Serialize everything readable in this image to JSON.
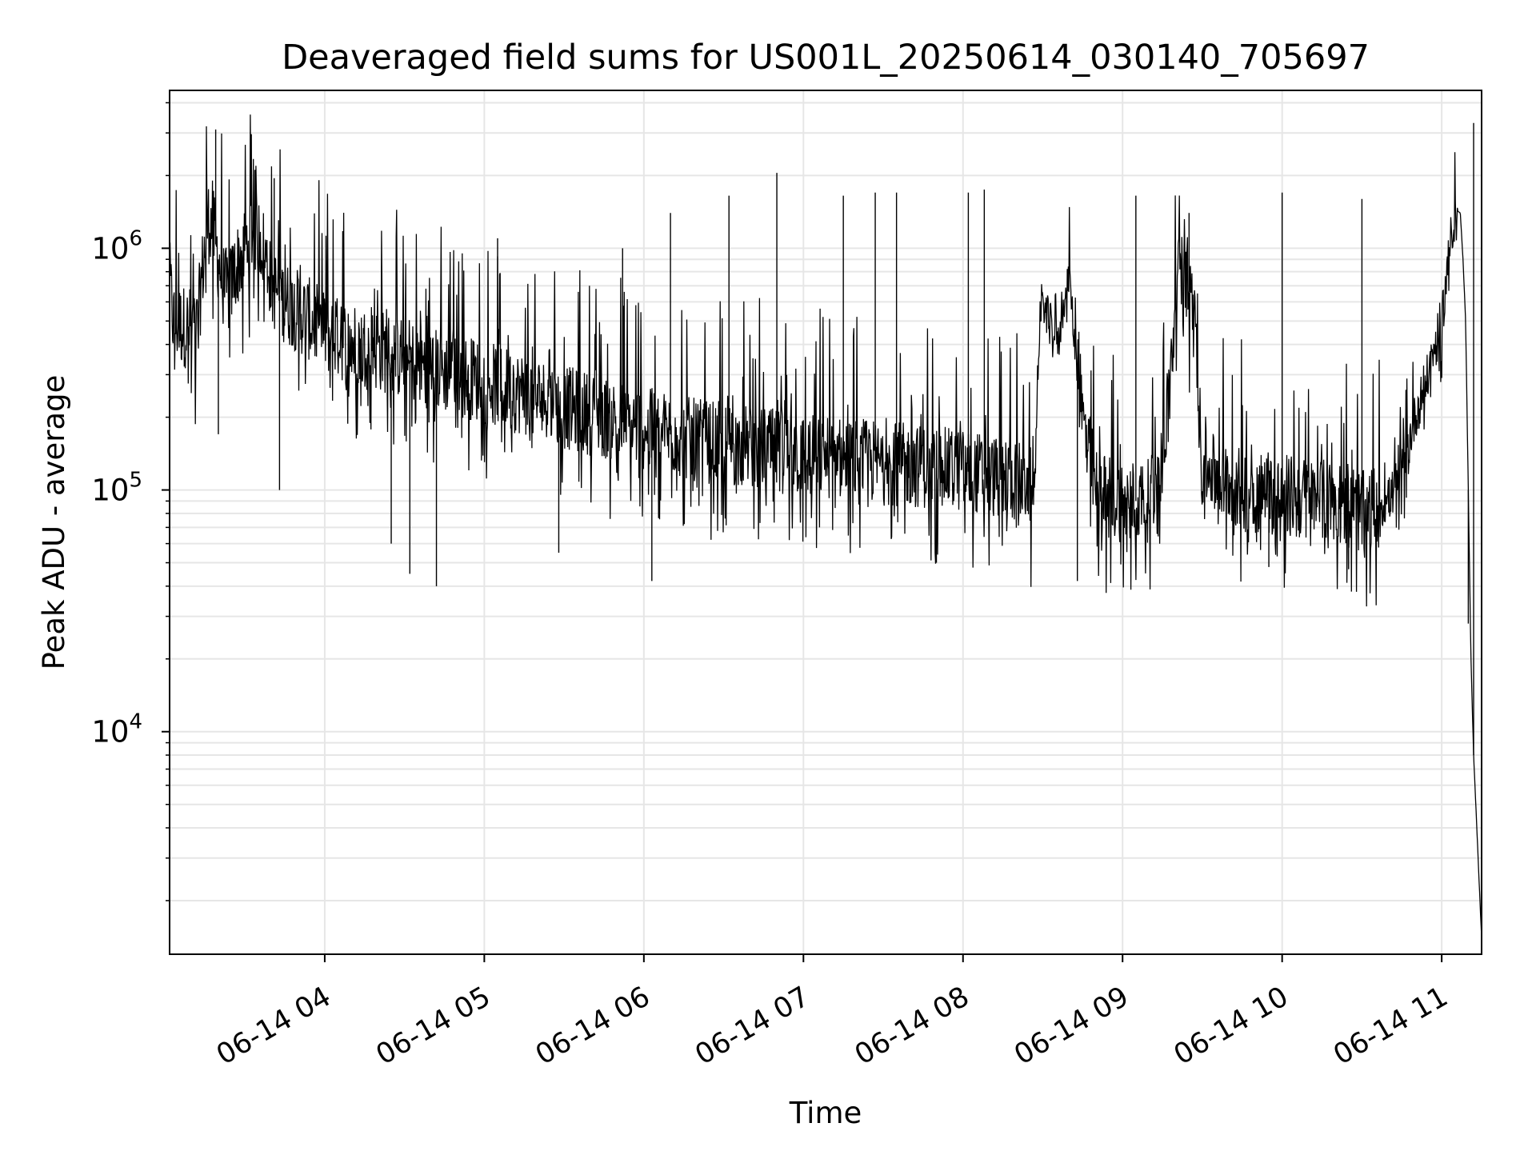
{
  "chart_data": {
    "type": "line",
    "title": "Deaveraged field sums for US001L_20250614_030140_705697",
    "xlabel": "Time",
    "ylabel": "Peak ADU - average",
    "y_scale": "log",
    "ylim": [
      1200,
      4500000
    ],
    "xlim": [
      "2025-06-14T03:01:40",
      "2025-06-14T11:15:00"
    ],
    "x_ticks": [
      {
        "time": "2025-06-14T04:00:00",
        "label": "06-14 04"
      },
      {
        "time": "2025-06-14T05:00:00",
        "label": "06-14 05"
      },
      {
        "time": "2025-06-14T06:00:00",
        "label": "06-14 06"
      },
      {
        "time": "2025-06-14T07:00:00",
        "label": "06-14 07"
      },
      {
        "time": "2025-06-14T08:00:00",
        "label": "06-14 08"
      },
      {
        "time": "2025-06-14T09:00:00",
        "label": "06-14 09"
      },
      {
        "time": "2025-06-14T10:00:00",
        "label": "06-14 10"
      },
      {
        "time": "2025-06-14T11:00:00",
        "label": "06-14 11"
      }
    ],
    "y_ticks": [
      {
        "value": 10000,
        "base": "10",
        "exp": "4"
      },
      {
        "value": 100000,
        "base": "10",
        "exp": "5"
      },
      {
        "value": 1000000,
        "base": "10",
        "exp": "6"
      }
    ],
    "grid": true,
    "line_color": "#000000",
    "grid_color": "#e6e6e6",
    "series": [
      {
        "x": [
          "2025-06-14T03:01:40",
          "2025-06-14T03:03:00",
          "2025-06-14T03:06:00",
          "2025-06-14T03:09:00",
          "2025-06-14T03:12:00",
          "2025-06-14T03:14:00",
          "2025-06-14T03:16:00",
          "2025-06-14T03:18:00",
          "2025-06-14T03:20:00",
          "2025-06-14T03:22:00",
          "2025-06-14T03:24:00",
          "2025-06-14T03:26:00",
          "2025-06-14T03:28:00",
          "2025-06-14T03:30:00",
          "2025-06-14T03:33:00",
          "2025-06-14T03:36:00",
          "2025-06-14T03:38:00",
          "2025-06-14T03:40:00",
          "2025-06-14T03:45:00",
          "2025-06-14T03:50:00",
          "2025-06-14T03:55:00",
          "2025-06-14T04:00:00",
          "2025-06-14T04:10:00",
          "2025-06-14T04:20:00",
          "2025-06-14T04:30:00",
          "2025-06-14T04:40:00",
          "2025-06-14T04:50:00",
          "2025-06-14T05:00:00",
          "2025-06-14T05:15:00",
          "2025-06-14T05:30:00",
          "2025-06-14T05:45:00",
          "2025-06-14T06:00:00",
          "2025-06-14T06:20:00",
          "2025-06-14T06:40:00",
          "2025-06-14T07:00:00",
          "2025-06-14T07:30:00",
          "2025-06-14T08:00:00",
          "2025-06-14T08:20:00",
          "2025-06-14T08:27:00",
          "2025-06-14T08:28:00",
          "2025-06-14T08:30:00",
          "2025-06-14T08:33:00",
          "2025-06-14T08:36:00",
          "2025-06-14T08:38:00",
          "2025-06-14T08:40:00",
          "2025-06-14T08:42:00",
          "2025-06-14T08:45:00",
          "2025-06-14T08:50:00",
          "2025-06-14T09:00:00",
          "2025-06-14T09:10:00",
          "2025-06-14T09:14:00",
          "2025-06-14T09:18:00",
          "2025-06-14T09:22:00",
          "2025-06-14T09:27:00",
          "2025-06-14T09:30:00",
          "2025-06-14T09:45:00",
          "2025-06-14T10:00:00",
          "2025-06-14T10:15:00",
          "2025-06-14T10:25:00",
          "2025-06-14T10:30:00",
          "2025-06-14T10:35:00",
          "2025-06-14T10:40:00",
          "2025-06-14T10:45:00",
          "2025-06-14T10:50:00",
          "2025-06-14T10:55:00",
          "2025-06-14T11:00:00",
          "2025-06-14T11:03:00",
          "2025-06-14T11:05:00",
          "2025-06-14T11:07:00",
          "2025-06-14T11:08:00",
          "2025-06-14T11:09:00",
          "2025-06-14T11:10:00",
          "2025-06-14T11:11:00",
          "2025-06-14T11:12:00",
          "2025-06-14T11:13:00",
          "2025-06-14T11:14:00",
          "2025-06-14T11:15:00"
        ],
        "y": [
          750000,
          500000,
          480000,
          470000,
          460000,
          800000,
          1300000,
          1200000,
          900000,
          700000,
          650000,
          800000,
          900000,
          1000000,
          1200000,
          1100000,
          900000,
          700000,
          600000,
          550000,
          500000,
          450000,
          400000,
          380000,
          350000,
          320000,
          300000,
          280000,
          250000,
          220000,
          200000,
          180000,
          160000,
          150000,
          140000,
          130000,
          120000,
          110000,
          100000,
          300000,
          600000,
          500000,
          400000,
          600000,
          800000,
          400000,
          200000,
          100000,
          90000,
          90000,
          95000,
          300000,
          1000000,
          500000,
          120000,
          100000,
          95000,
          90000,
          90000,
          80000,
          85000,
          90000,
          120000,
          200000,
          300000,
          500000,
          1000000,
          1450000,
          1400000,
          900000,
          500000,
          100000,
          20000,
          8000,
          4500,
          2500,
          1400
        ]
      }
    ],
    "spikes": [
      {
        "x": "2025-06-14T03:19:00",
        "y": 3100000
      },
      {
        "x": "2025-06-14T03:20:00",
        "y": 170000
      },
      {
        "x": "2025-06-14T03:41:00",
        "y": 1950000
      },
      {
        "x": "2025-06-14T03:43:00",
        "y": 100000
      },
      {
        "x": "2025-06-14T04:25:00",
        "y": 60000
      },
      {
        "x": "2025-06-14T04:32:00",
        "y": 45000
      },
      {
        "x": "2025-06-14T04:42:00",
        "y": 40000
      },
      {
        "x": "2025-06-14T05:05:00",
        "y": 1100000
      },
      {
        "x": "2025-06-14T05:28:00",
        "y": 55000
      },
      {
        "x": "2025-06-14T05:52:00",
        "y": 1000000
      },
      {
        "x": "2025-06-14T06:03:00",
        "y": 42000
      },
      {
        "x": "2025-06-14T06:10:00",
        "y": 1400000
      },
      {
        "x": "2025-06-14T06:32:00",
        "y": 1650000
      },
      {
        "x": "2025-06-14T06:50:00",
        "y": 2050000
      },
      {
        "x": "2025-06-14T07:15:00",
        "y": 1650000
      },
      {
        "x": "2025-06-14T07:27:00",
        "y": 1700000
      },
      {
        "x": "2025-06-14T07:35:00",
        "y": 1700000
      },
      {
        "x": "2025-06-14T07:50:00",
        "y": 50000
      },
      {
        "x": "2025-06-14T08:02:00",
        "y": 1700000
      },
      {
        "x": "2025-06-14T08:08:00",
        "y": 1750000
      },
      {
        "x": "2025-06-14T08:43:00",
        "y": 42000
      },
      {
        "x": "2025-06-14T09:05:00",
        "y": 1650000
      },
      {
        "x": "2025-06-14T09:25:00",
        "y": 1400000
      },
      {
        "x": "2025-06-14T09:55:00",
        "y": 48000
      },
      {
        "x": "2025-06-14T10:00:00",
        "y": 1700000
      },
      {
        "x": "2025-06-14T10:25:00",
        "y": 47000
      },
      {
        "x": "2025-06-14T10:30:00",
        "y": 1600000
      },
      {
        "x": "2025-06-14T11:10:00",
        "y": 28000
      },
      {
        "x": "2025-06-14T11:12:00",
        "y": 3300000
      }
    ]
  }
}
